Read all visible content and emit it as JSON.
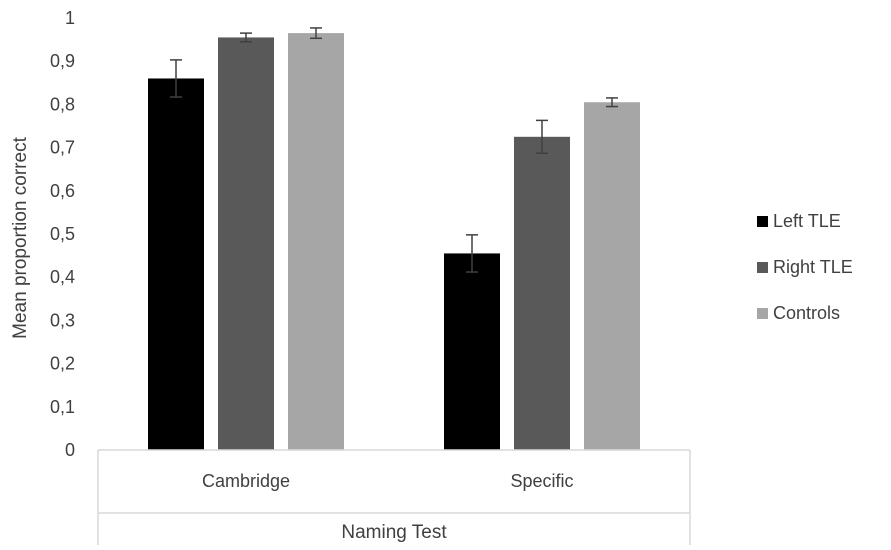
{
  "chart_data": {
    "type": "bar",
    "title": "",
    "xlabel": "Naming Test",
    "ylabel": "Mean proportion correct",
    "ylim": [
      0,
      1
    ],
    "yticks": [
      "0",
      "0,1",
      "0,2",
      "0,3",
      "0,4",
      "0,5",
      "0,6",
      "0,7",
      "0,8",
      "0,9",
      "1"
    ],
    "categories": [
      "Cambridge",
      "Specific"
    ],
    "series": [
      {
        "name": "Left TLE",
        "values": [
          0.86,
          0.455
        ],
        "error": [
          0.043,
          0.043
        ],
        "color": "#000000"
      },
      {
        "name": "Right TLE",
        "values": [
          0.955,
          0.725
        ],
        "error": [
          0.01,
          0.038
        ],
        "color": "#595959"
      },
      {
        "name": "Controls",
        "values": [
          0.965,
          0.805
        ],
        "error": [
          0.012,
          0.01
        ],
        "color": "#a6a6a6"
      }
    ],
    "grid": false,
    "legend_position": "right",
    "error_bar_color": "#404040",
    "axis_color": "#d9d9d9"
  }
}
